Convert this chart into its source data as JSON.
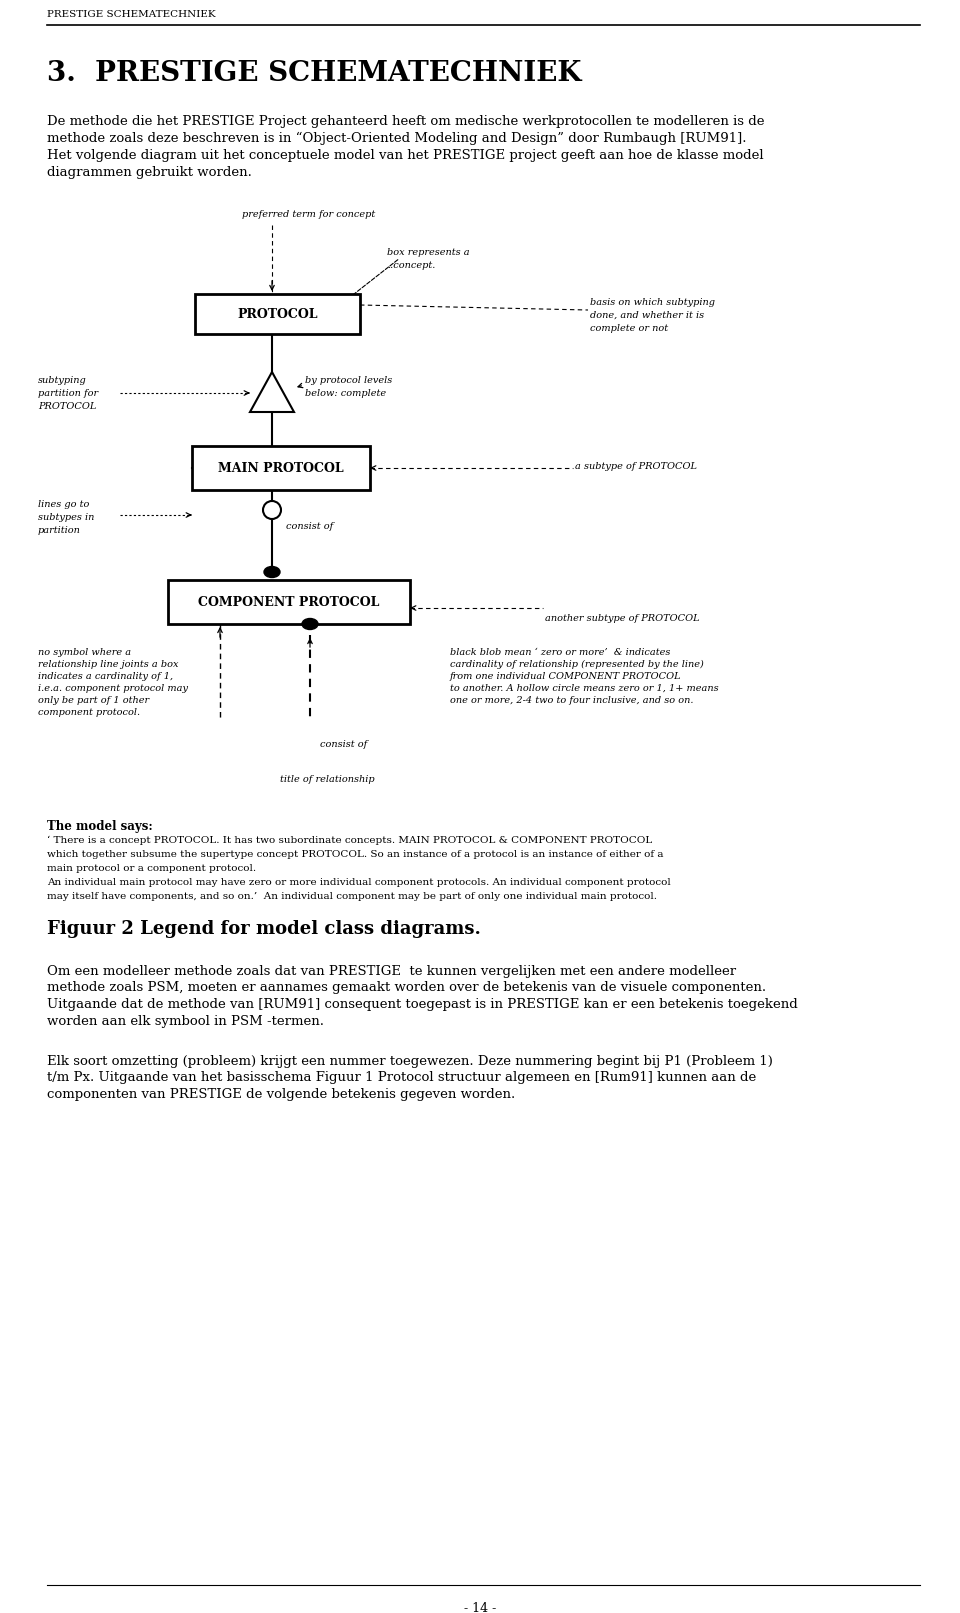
{
  "page_header": "PRESTIGE SCHEMATECHNIEK",
  "section_title": "3.  PRESTIGE SCHEMATECHNIEK",
  "intro_line1": "De methode die het PRESTIGE Project gehanteerd heeft om medische werkprotocollen te modelleren is de",
  "intro_line2": "methode zoals deze beschreven is in “Object-Oriented Modeling and Design” door Rumbaugh [RUM91].",
  "intro_line3": "Het volgende diagram uit het conceptuele model van het PRESTIGE project geeft aan hoe de klasse model",
  "intro_line4": "diagrammen gebruikt worden.",
  "protocol_label": "PROTOCOL",
  "main_protocol_label": "MAIN PROTOCOL",
  "component_protocol_label": "COMPONENT PROTOCOL",
  "ann_preferred": "preferred term for concept",
  "ann_box_rep1": "box represents a",
  "ann_box_rep2": "..concept.",
  "ann_basis1": "basis on which subtyping",
  "ann_basis2": "done, and whether it is",
  "ann_basis3": "complete or not",
  "ann_subtyping1": "subtyping",
  "ann_subtyping2": "partition for",
  "ann_subtyping3": "PROTOCOL",
  "ann_byproto1": "by protocol levels",
  "ann_byproto2": "below: complete",
  "ann_lines1": "lines go to",
  "ann_lines2": "subtypes in",
  "ann_lines3": "partition",
  "ann_asubtype": "a subtype of PROTOCOL",
  "ann_another": "another subtype of PROTOCOL",
  "ann_consist1": "consist of",
  "ann_consist2": "consist of",
  "ann_nosymbol1": "no symbol where a",
  "ann_nosymbol2": "relationship line joints a box",
  "ann_nosymbol3": "indicates a cardinality of 1,",
  "ann_nosymbol4": "i.e.a. component protocol may",
  "ann_nosymbol5": "only be part of 1 other",
  "ann_nosymbol6": "component protocol.",
  "ann_black1": "black blob mean ‘ zero or more’  & indicates",
  "ann_black2": "cardinality of relationship (represented by the line)",
  "ann_black3": "from one individual COMPONENT PROTOCOL",
  "ann_black4": "to another. A hollow circle means zero or 1, 1+ means",
  "ann_black5": "one or more, 2-4 two to four inclusive, and so on.",
  "ann_title_rel": "title of relationship",
  "model_says_title": "The model says:",
  "model_line1": "‘ There is a concept PROTOCOL. It has two subordinate concepts. MAIN PROTOCOL & COMPONENT PROTOCOL",
  "model_line2": "which together subsume the supertype concept PROTOCOL. So an instance of a protocol is an instance of either of a",
  "model_line3": "main protocol or a component protocol.",
  "model_line4": "An individual main protocol may have zero or more individual component protocols. An individual component protocol",
  "model_line5": "may itself have components, and so on.’  An individual component may be part of only one individual main protocol.",
  "figuur_caption": "Figuur 2 Legend for model class diagrams.",
  "bottom1_line1": "Om een modelleer methode zoals dat van PRESTIGE  te kunnen vergelijken met een andere modelleer",
  "bottom1_line2": "methode zoals PSM, moeten er aannames gemaakt worden over de betekenis van de visuele componenten.",
  "bottom1_line3": "Uitgaande dat de methode van [RUM91] consequent toegepast is in PRESTIGE kan er een betekenis toegekend",
  "bottom1_line4": "worden aan elk symbool in PSM -termen.",
  "bottom2_line1": "Elk soort omzetting (probleem) krijgt een nummer toegewezen. Deze nummering begint bij P1 (Probleem 1)",
  "bottom2_line2": "t/m Px. Uitgaande van het basisschema Figuur 1 Protocol structuur algemeen en [Rum91] kunnen aan de",
  "bottom2_line3": "componenten van PRESTIGE de volgende betekenis gegeven worden.",
  "page_number": "- 14 -"
}
